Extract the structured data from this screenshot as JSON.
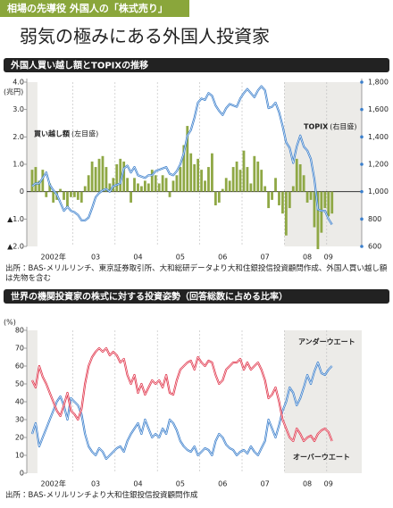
{
  "header": {
    "tag": "相場の先導役 外国人の「株式売り」",
    "title": "弱気の極みにある外国人投資家"
  },
  "chart_data": [
    {
      "type": "combo",
      "title": "外国人買い越し額とTOPIXの推移",
      "y_unit": "(兆円)",
      "categories": [
        null,
        null,
        null,
        null,
        null,
        null,
        "2002年",
        null,
        null,
        null,
        null,
        null,
        null,
        null,
        null,
        null,
        null,
        null,
        "03",
        null,
        null,
        null,
        null,
        null,
        null,
        null,
        null,
        null,
        null,
        null,
        "04",
        null,
        null,
        null,
        null,
        null,
        null,
        null,
        null,
        null,
        null,
        null,
        "05",
        null,
        null,
        null,
        null,
        null,
        null,
        null,
        null,
        null,
        null,
        null,
        "06",
        null,
        null,
        null,
        null,
        null,
        null,
        null,
        null,
        null,
        null,
        null,
        "07",
        null,
        null,
        null,
        null,
        null,
        null,
        null,
        null,
        null,
        null,
        null,
        "08",
        null,
        null,
        null,
        null,
        null,
        "09",
        null
      ],
      "series": [
        {
          "name": "買い越し額",
          "axis_note": "(左目盛)",
          "kind": "bar",
          "color": "#8fa845",
          "values": [
            0.8,
            0.9,
            0.4,
            0.8,
            -0.2,
            0.3,
            -0.4,
            -0.3,
            0.1,
            -0.3,
            -0.6,
            -0.2,
            -0.2,
            -0.3,
            -0.4,
            0.2,
            0.6,
            1.1,
            0.9,
            1.2,
            1.3,
            0.9,
            0.3,
            0.5,
            1.0,
            1.2,
            1.1,
            0.5,
            -0.4,
            0.5,
            0.3,
            0.2,
            0.4,
            0.3,
            0.8,
            0.6,
            0.3,
            0.6,
            0.5,
            -0.2,
            0.4,
            0.6,
            0.9,
            1.7,
            2.4,
            1.4,
            1.0,
            1.2,
            0.8,
            0.4,
            0.9,
            1.4,
            -0.5,
            -0.4,
            0.1,
            0.5,
            0.4,
            0.9,
            1.1,
            0.8,
            1.5,
            0.9,
            0.3,
            1.3,
            1.1,
            0.8,
            0.2,
            -0.6,
            -0.3,
            0.5,
            -0.5,
            -0.8,
            -1.6,
            -0.6,
            0.2,
            1.2,
            1.0,
            0.6,
            -0.4,
            -0.3,
            -1.3,
            -2.1,
            -1.5,
            -0.6,
            -0.9,
            -0.8
          ]
        },
        {
          "name": "TOPIX",
          "axis_note": "(右目盛)",
          "kind": "line",
          "axis": "y2",
          "color": "#3b7fcc",
          "values": [
            1040,
            1060,
            1060,
            1100,
            1140,
            1050,
            1010,
            980,
            920,
            860,
            890,
            860,
            850,
            830,
            790,
            790,
            810,
            880,
            960,
            990,
            1010,
            1020,
            1000,
            1040,
            1050,
            1060,
            1170,
            1190,
            1140,
            1180,
            1120,
            1110,
            1100,
            1120,
            1120,
            1150,
            1160,
            1170,
            1180,
            1130,
            1120,
            1150,
            1200,
            1280,
            1410,
            1450,
            1540,
            1650,
            1680,
            1670,
            1720,
            1700,
            1630,
            1590,
            1560,
            1610,
            1640,
            1630,
            1620,
            1680,
            1720,
            1750,
            1720,
            1690,
            1740,
            1770,
            1740,
            1610,
            1620,
            1650,
            1580,
            1480,
            1360,
            1320,
            1210,
            1330,
            1410,
            1330,
            1300,
            1240,
            1090,
            870,
            860,
            860,
            800,
            760
          ]
        }
      ],
      "ylim": [
        -2,
        4
      ],
      "yticks": [
        {
          "value": -2,
          "label": "▲2.0"
        },
        {
          "value": -1,
          "label": "▲1.0"
        },
        0,
        {
          "value": 1,
          "label": "1.0"
        },
        {
          "value": 2,
          "label": "2.0"
        },
        {
          "value": 3,
          "label": "3.0"
        },
        {
          "value": 4,
          "label": "4.0"
        }
      ],
      "y2lim": [
        600,
        1800
      ],
      "y2ticks": [
        600,
        800,
        {
          "value": 1000,
          "label": "1,000"
        },
        {
          "value": 1200,
          "label": "1,200"
        },
        {
          "value": 1400,
          "label": "1,400"
        },
        {
          "value": 1600,
          "label": "1,600"
        },
        {
          "value": 1800,
          "label": "1,800"
        }
      ],
      "source": "出所：BAS-メリルリンチ、東京証券取引所、大和総研データより大和住銀投信投資顧問作成、外国人買い越し額は先物を含む"
    },
    {
      "type": "line",
      "title": "世界の機関投資家の株式に対する投資姿勢（回答総数に占める比率）",
      "y_unit": "(%)",
      "categories": [
        null,
        null,
        null,
        null,
        null,
        null,
        "2002年",
        null,
        null,
        null,
        null,
        null,
        null,
        null,
        null,
        null,
        null,
        null,
        "03",
        null,
        null,
        null,
        null,
        null,
        null,
        null,
        null,
        null,
        null,
        null,
        "04",
        null,
        null,
        null,
        null,
        null,
        null,
        null,
        null,
        null,
        null,
        null,
        "05",
        null,
        null,
        null,
        null,
        null,
        null,
        null,
        null,
        null,
        null,
        null,
        "06",
        null,
        null,
        null,
        null,
        null,
        null,
        null,
        null,
        null,
        null,
        null,
        "07",
        null,
        null,
        null,
        null,
        null,
        null,
        null,
        null,
        null,
        null,
        null,
        "08",
        null,
        null,
        null,
        null,
        null,
        "09",
        null
      ],
      "series": [
        {
          "name": "アンダーウエート",
          "color": "#3b7fcc",
          "values": [
            22,
            28,
            15,
            20,
            25,
            30,
            35,
            40,
            43,
            38,
            30,
            42,
            40,
            38,
            33,
            22,
            15,
            12,
            10,
            14,
            12,
            8,
            10,
            12,
            14,
            15,
            12,
            18,
            22,
            25,
            28,
            22,
            30,
            25,
            20,
            22,
            20,
            25,
            22,
            30,
            28,
            24,
            18,
            15,
            13,
            12,
            15,
            10,
            12,
            14,
            13,
            10,
            18,
            22,
            20,
            16,
            14,
            13,
            10,
            12,
            13,
            11,
            15,
            12,
            10,
            14,
            18,
            30,
            25,
            20,
            27,
            35,
            40,
            48,
            45,
            38,
            42,
            48,
            55,
            50,
            57,
            62,
            56,
            55,
            58,
            60
          ]
        },
        {
          "name": "オーバーウエート",
          "color": "#e0344a",
          "values": [
            52,
            48,
            60,
            54,
            50,
            45,
            40,
            35,
            32,
            38,
            45,
            35,
            33,
            30,
            36,
            50,
            60,
            65,
            68,
            70,
            68,
            70,
            66,
            68,
            66,
            62,
            64,
            55,
            50,
            55,
            45,
            50,
            44,
            48,
            52,
            50,
            52,
            48,
            55,
            45,
            44,
            52,
            58,
            60,
            62,
            63,
            58,
            65,
            62,
            60,
            63,
            62,
            55,
            50,
            52,
            58,
            60,
            62,
            62,
            64,
            58,
            62,
            58,
            60,
            62,
            58,
            52,
            42,
            44,
            48,
            40,
            30,
            25,
            20,
            18,
            25,
            22,
            18,
            20,
            21,
            18,
            22,
            24,
            25,
            23,
            18
          ]
        }
      ],
      "ylim": [
        0,
        80
      ],
      "yticks": [
        0,
        10,
        20,
        30,
        40,
        50,
        60,
        70,
        80
      ],
      "source": "出所：BAS-メリルリンチより大和住銀投信投資顧問作成"
    }
  ]
}
